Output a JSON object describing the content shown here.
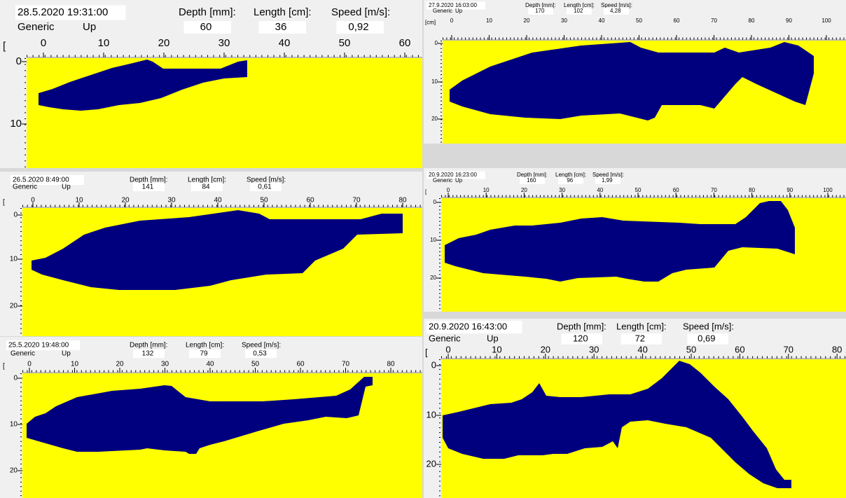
{
  "panels": [
    {
      "timestamp": "28.5.2020 19:31:00",
      "class": "Generic",
      "direction": "Up",
      "depth_label": "Depth [mm]:",
      "depth": "60",
      "length_label": "Length [cm]:",
      "length": "36",
      "speed_label": "Speed [m/s]:",
      "speed": "0,92",
      "ruler_unit": "[",
      "x_ticks": [
        "0",
        "10",
        "20",
        "30",
        "40",
        "50",
        "60"
      ],
      "y_ticks": [
        "0",
        "10"
      ]
    },
    {
      "timestamp": "27.9.2020 16:03:00",
      "class": "Generic",
      "direction": "Up",
      "depth_label": "Depth [mm]:",
      "depth": "170",
      "length_label": "Length [cm]:",
      "length": "102",
      "speed_label": "Speed [m/s]:",
      "speed": "4,28",
      "ruler_unit": "[cm]",
      "x_ticks": [
        "0",
        "10",
        "20",
        "30",
        "40",
        "50",
        "60",
        "70",
        "80",
        "90",
        "100"
      ],
      "y_ticks": [
        "0",
        "10",
        "20"
      ]
    },
    {
      "timestamp": "26.5.2020 8:49:00",
      "class": "Generic",
      "direction": "Up",
      "depth_label": "Depth [mm]:",
      "depth": "141",
      "length_label": "Length [cm]:",
      "length": "84",
      "speed_label": "Speed [m/s]:",
      "speed": "0,61",
      "ruler_unit": "[",
      "x_ticks": [
        "0",
        "10",
        "20",
        "30",
        "40",
        "50",
        "60",
        "70",
        "80"
      ],
      "y_ticks": [
        "0",
        "10",
        "20"
      ]
    },
    {
      "timestamp": "20.9.2020 16:23:00",
      "class": "Generic",
      "direction": "Up",
      "depth_label": "Depth [mm]:",
      "depth": "160",
      "length_label": "Length [cm]:",
      "length": "96",
      "speed_label": "Speed [m/s]:",
      "speed": "1,99",
      "ruler_unit": "[",
      "x_ticks": [
        "0",
        "10",
        "20",
        "30",
        "40",
        "50",
        "60",
        "70",
        "80",
        "90",
        "100"
      ],
      "y_ticks": [
        "0",
        "10",
        "20"
      ]
    },
    {
      "timestamp": "25.5.2020 19:48:00",
      "class": "Generic",
      "direction": "Up",
      "depth_label": "Depth [mm]:",
      "depth": "132",
      "length_label": "Length [cm]:",
      "length": "79",
      "speed_label": "Speed [m/s]:",
      "speed": "0,53",
      "ruler_unit": "[",
      "x_ticks": [
        "0",
        "10",
        "20",
        "30",
        "40",
        "50",
        "60",
        "70",
        "80"
      ],
      "y_ticks": [
        "0",
        "10",
        "20"
      ]
    },
    {
      "timestamp": "20.9.2020 16:43:00",
      "class": "Generic",
      "direction": "Up",
      "depth_label": "Depth [mm]:",
      "depth": "120",
      "length_label": "Length [cm]:",
      "length": "72",
      "speed_label": "Speed [m/s]:",
      "speed": "0,69",
      "ruler_unit": "[",
      "x_ticks": [
        "0",
        "10",
        "20",
        "30",
        "40",
        "50",
        "60",
        "70",
        "80"
      ],
      "y_ticks": [
        "0",
        "10",
        "20"
      ]
    }
  ]
}
